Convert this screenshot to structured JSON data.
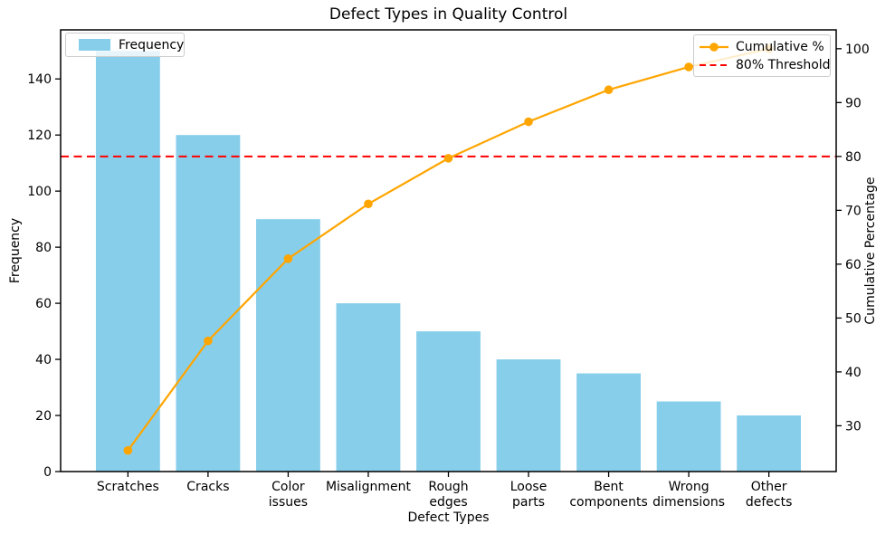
{
  "chart_data": {
    "type": "bar",
    "title": "Defect Types in Quality Control",
    "xlabel": "Defect Types",
    "ylabel_left": "Frequency",
    "ylabel_right": "Cumulative Percentage",
    "categories": [
      "Scratches",
      "Cracks",
      "Color\nissues",
      "Misalignment",
      "Rough\nedges",
      "Loose\nparts",
      "Bent\ncomponents",
      "Wrong\ndimensions",
      "Other\ndefects"
    ],
    "series": [
      {
        "name": "Frequency",
        "type": "bar",
        "axis": "left",
        "color": "#87ceeb",
        "values": [
          150,
          120,
          90,
          60,
          50,
          40,
          35,
          25,
          20
        ]
      },
      {
        "name": "Cumulative %",
        "type": "line",
        "axis": "right",
        "color": "#ffa500",
        "values": [
          25.42,
          45.76,
          61.02,
          71.19,
          79.66,
          86.44,
          92.37,
          96.61,
          100.0
        ]
      }
    ],
    "threshold": {
      "value": 80,
      "axis": "right",
      "label": "80% Threshold",
      "color": "#ff0000",
      "style": "dashed"
    },
    "axes": {
      "x": {
        "lim": [
          -0.84,
          8.84
        ]
      },
      "left": {
        "lim": [
          0,
          157.5
        ],
        "ticks": [
          0,
          20,
          40,
          60,
          80,
          100,
          120,
          140
        ]
      },
      "right": {
        "lim": [
          21.5,
          103.5
        ],
        "ticks": [
          30,
          40,
          50,
          60,
          70,
          80,
          90,
          100
        ]
      }
    },
    "legend_left": {
      "items": [
        "Frequency"
      ]
    },
    "legend_right": {
      "items": [
        "Cumulative %",
        "80% Threshold"
      ]
    },
    "grid": false,
    "legend_positions": {
      "frequency": "upper left",
      "cumulative": "upper right"
    }
  }
}
